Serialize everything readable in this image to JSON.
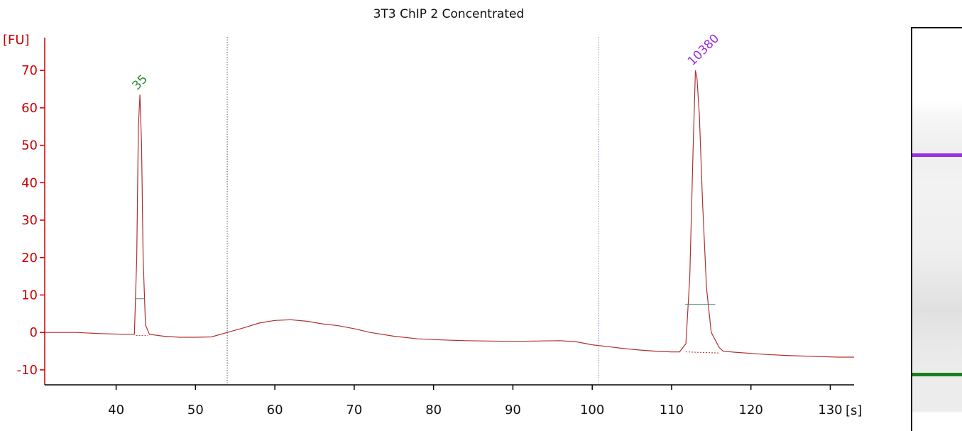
{
  "chart_data": {
    "type": "line",
    "title": "3T3 ChIP 2 Concentrated",
    "ylabel": "[FU]",
    "xlabel": "[s]",
    "xlim": [
      31,
      133
    ],
    "ylim": [
      -14,
      78
    ],
    "x_ticks": [
      40,
      50,
      60,
      70,
      80,
      90,
      100,
      110,
      120,
      130
    ],
    "y_ticks": [
      -10,
      0,
      10,
      20,
      30,
      40,
      50,
      60,
      70
    ],
    "axis_color": "#cc0000",
    "trace_color": "#b03030",
    "grid": false,
    "dotted_markers_x": [
      54.0,
      100.8
    ],
    "series": [
      {
        "x": [
          31,
          35,
          38,
          41,
          42.3,
          42.6,
          42.8,
          43.0,
          43.2,
          43.4,
          43.7,
          44.2,
          46,
          48,
          50,
          52,
          54,
          56,
          58,
          60,
          62,
          64,
          66,
          68,
          70,
          72,
          75,
          78,
          81,
          84,
          87,
          90,
          93,
          96,
          98,
          100,
          102,
          104,
          106,
          108,
          110,
          111,
          111.8,
          112.3,
          112.7,
          113.0,
          113.2,
          113.5,
          113.9,
          114.4,
          115.0,
          115.5,
          116.0,
          116.5,
          118,
          120,
          122,
          125,
          128,
          131,
          133
        ],
        "y": [
          0.0,
          0.0,
          -0.3,
          -0.5,
          -0.5,
          20,
          55,
          63.5,
          50,
          20,
          2,
          -0.5,
          -1.0,
          -1.3,
          -1.3,
          -1.2,
          0.0,
          1.2,
          2.5,
          3.2,
          3.4,
          3.0,
          2.3,
          1.8,
          1.0,
          0.0,
          -1.0,
          -1.7,
          -2.0,
          -2.2,
          -2.3,
          -2.4,
          -2.3,
          -2.2,
          -2.5,
          -3.3,
          -3.8,
          -4.3,
          -4.7,
          -5.0,
          -5.2,
          -5.2,
          -3.0,
          15,
          48,
          70,
          68,
          58,
          35,
          12,
          0,
          -2,
          -4,
          -5.0,
          -5.3,
          -5.6,
          -5.9,
          -6.2,
          -6.4,
          -6.6,
          -6.6
        ]
      }
    ],
    "peaks": [
      {
        "label": "35",
        "x": 43.0,
        "y": 63.5,
        "color": "#2a8a2a",
        "width_level": 9.0,
        "width_range": [
          42.5,
          43.6
        ]
      },
      {
        "label": "10380",
        "x": 113.0,
        "y": 70,
        "color": "#9b30d9",
        "width_level": 7.5,
        "width_range": [
          111.7,
          115.5
        ]
      }
    ],
    "baseline_segments": [
      {
        "x": [
          42.5,
          44.0
        ],
        "y": [
          -0.8,
          -0.8
        ]
      },
      {
        "x": [
          111.8,
          116.0
        ],
        "y": [
          -5.2,
          -5.5
        ]
      }
    ]
  },
  "gel": {
    "bands": [
      {
        "color": "#9b30e0",
        "position": 0.31
      },
      {
        "color": "#1e7f1e",
        "position": 0.855
      }
    ]
  }
}
